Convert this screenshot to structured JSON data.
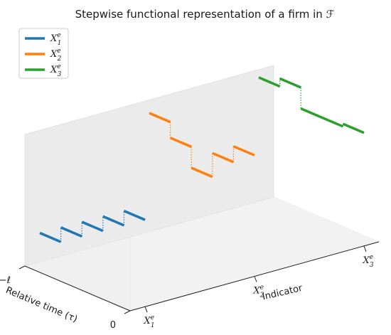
{
  "chart_data": {
    "type": "line",
    "projection": "3d",
    "title": "Stepwise functional representation of a firm in ℱ",
    "xlabel": "Relative time (τ)",
    "ylabel": "Indicator",
    "x_ticks": [
      {
        "value": 0,
        "base": "−ℓ",
        "sup": "",
        "sub": ""
      },
      {
        "value": 1,
        "base": "0",
        "sup": "",
        "sub": ""
      }
    ],
    "y_ticks": [
      {
        "value": 1,
        "base": "X",
        "sup": "e",
        "sub": "1"
      },
      {
        "value": 2,
        "base": "X",
        "sup": "e",
        "sub": "2"
      },
      {
        "value": 3,
        "base": "X",
        "sup": "e",
        "sub": "3"
      }
    ],
    "xlim": [
      0,
      1
    ],
    "ylim": [
      1,
      3
    ],
    "zlim": [
      0,
      1
    ],
    "grid": false,
    "legend_position": "top-left",
    "series": [
      {
        "name_base": "X",
        "name_sup": "e",
        "name_sub": "1",
        "y": 1,
        "color": "#1f77b4",
        "steps": [
          {
            "t0": 0.0,
            "t1": 0.2,
            "z": 0.22
          },
          {
            "t0": 0.2,
            "t1": 0.4,
            "z": 0.33
          },
          {
            "t0": 0.4,
            "t1": 0.6,
            "z": 0.44
          },
          {
            "t0": 0.6,
            "t1": 0.8,
            "z": 0.55
          },
          {
            "t0": 0.8,
            "t1": 1.0,
            "z": 0.66
          }
        ]
      },
      {
        "name_base": "X",
        "name_sup": "e",
        "name_sub": "2",
        "y": 2,
        "color": "#ff7f0e",
        "steps": [
          {
            "t0": 0.0,
            "t1": 0.2,
            "z": 0.9
          },
          {
            "t0": 0.2,
            "t1": 0.4,
            "z": 0.78
          },
          {
            "t0": 0.4,
            "t1": 0.6,
            "z": 0.62
          },
          {
            "t0": 0.6,
            "t1": 0.8,
            "z": 0.8
          },
          {
            "t0": 0.8,
            "t1": 1.0,
            "z": 0.92
          }
        ]
      },
      {
        "name_base": "X",
        "name_sup": "e",
        "name_sub": "3",
        "y": 3,
        "color": "#2ca02c",
        "steps": [
          {
            "t0": 0.0,
            "t1": 0.2,
            "z": 0.94
          },
          {
            "t0": 0.2,
            "t1": 0.4,
            "z": 1.0
          },
          {
            "t0": 0.4,
            "t1": 0.6,
            "z": 0.84
          },
          {
            "t0": 0.6,
            "t1": 0.8,
            "z": 0.84
          },
          {
            "t0": 0.8,
            "t1": 1.0,
            "z": 0.86
          }
        ]
      }
    ]
  }
}
